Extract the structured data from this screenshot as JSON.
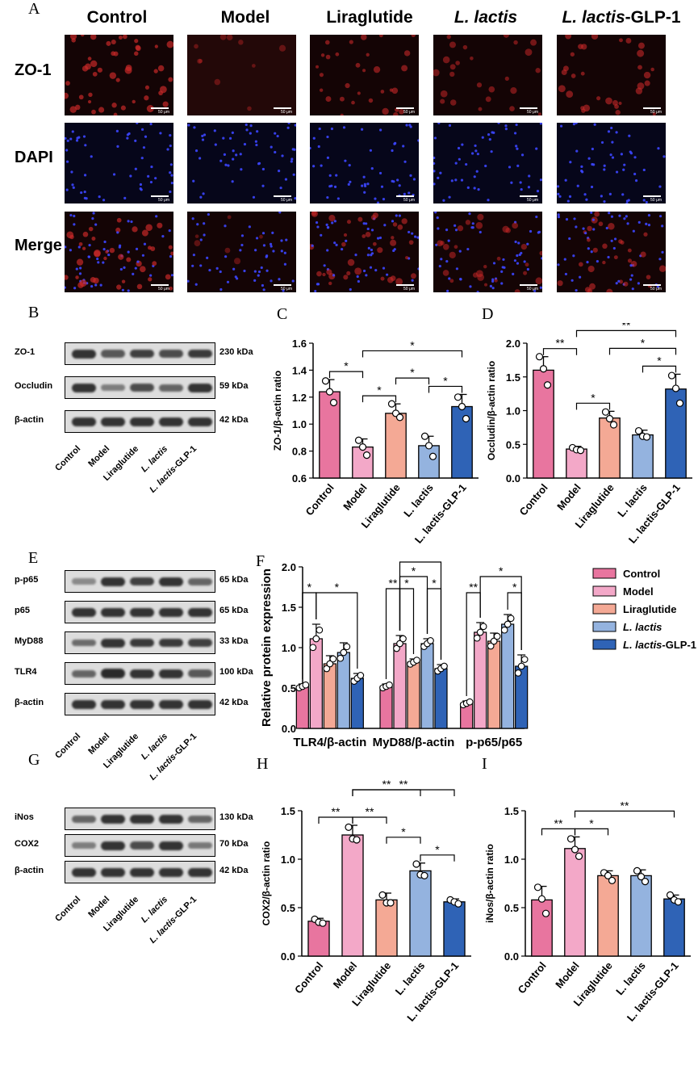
{
  "panels": {
    "A": "A",
    "B": "B",
    "C": "C",
    "D": "D",
    "E": "E",
    "F": "F",
    "G": "G",
    "H": "H",
    "I": "I"
  },
  "microscopy": {
    "columns": [
      "Control",
      "Model",
      "Liraglutide",
      "L. lactis",
      "L. lactis-GLP-1"
    ],
    "rows": [
      "ZO-1",
      "DAPI",
      "Merge"
    ],
    "scalebar": "50 μm"
  },
  "blots": {
    "B": {
      "bands": [
        {
          "name": "ZO-1",
          "kda": "230 kDa"
        },
        {
          "name": "Occludin",
          "kda": "59 kDa"
        },
        {
          "name": "β-actin",
          "kda": "42 kDa"
        }
      ]
    },
    "E": {
      "bands": [
        {
          "name": "p-p65",
          "kda": "65 kDa"
        },
        {
          "name": "p65",
          "kda": "65 kDa"
        },
        {
          "name": "MyD88",
          "kda": "33 kDa"
        },
        {
          "name": "TLR4",
          "kda": "100 kDa"
        },
        {
          "name": "β-actin",
          "kda": "42 kDa"
        }
      ]
    },
    "G": {
      "bands": [
        {
          "name": "iNos",
          "kda": "130 kDa"
        },
        {
          "name": "COX2",
          "kda": "70 kDa"
        },
        {
          "name": "β-actin",
          "kda": "42 kDa"
        }
      ]
    },
    "lanes": [
      "Control",
      "Model",
      "Liraglutide",
      "L. lactis",
      "L. lactis-GLP-1"
    ]
  },
  "colors": {
    "Control": "#e8759f",
    "Model": "#f3a8c8",
    "Liraglutide": "#f4a995",
    "L. lactis": "#94b3df",
    "L. lactis-GLP-1": "#2f63b6"
  },
  "chart_data": [
    {
      "panel": "C",
      "type": "bar",
      "ylabel": "ZO-1/β-actin ratio",
      "ylim": [
        0.6,
        1.6
      ],
      "yticks": [
        "0.6",
        "0.8",
        "1.0",
        "1.2",
        "1.4",
        "1.6"
      ],
      "categories": [
        "Control",
        "Model",
        "Liraglutide",
        "L. lactis",
        "L. lactis-GLP-1"
      ],
      "values": [
        1.24,
        0.83,
        1.08,
        0.84,
        1.13
      ],
      "errors": [
        0.09,
        0.06,
        0.07,
        0.07,
        0.09
      ],
      "points": [
        [
          1.32,
          1.24,
          1.16
        ],
        [
          0.88,
          0.83,
          0.77
        ],
        [
          1.15,
          1.08,
          1.05
        ],
        [
          0.91,
          0.84,
          0.76
        ],
        [
          1.2,
          1.13,
          1.04
        ]
      ],
      "sig": [
        {
          "a": 0,
          "b": 1,
          "l": "*",
          "lvl": 1
        },
        {
          "a": 1,
          "b": 2,
          "l": "*",
          "lvl": 1
        },
        {
          "a": 3,
          "b": 4,
          "l": "*",
          "lvl": 1
        },
        {
          "a": 2,
          "b": 3,
          "l": "*",
          "lvl": 2
        },
        {
          "a": 1,
          "b": 4,
          "l": "*",
          "lvl": 3
        }
      ]
    },
    {
      "panel": "D",
      "type": "bar",
      "ylabel": "Occludin/β-actin ratio",
      "ylim": [
        0,
        2.0
      ],
      "yticks": [
        "0.0",
        "0.5",
        "1.0",
        "1.5",
        "2.0"
      ],
      "categories": [
        "Control",
        "Model",
        "Liraglutide",
        "L. lactis",
        "L. lactis-GLP-1"
      ],
      "values": [
        1.6,
        0.43,
        0.89,
        0.64,
        1.32
      ],
      "errors": [
        0.2,
        0.04,
        0.1,
        0.07,
        0.22
      ],
      "points": [
        [
          1.8,
          1.62,
          1.38
        ],
        [
          0.45,
          0.42,
          0.41
        ],
        [
          0.98,
          0.88,
          0.79
        ],
        [
          0.7,
          0.62,
          0.61
        ],
        [
          1.52,
          1.33,
          1.11
        ]
      ],
      "sig": [
        {
          "a": 0,
          "b": 1,
          "l": "**",
          "lvl": 1
        },
        {
          "a": 1,
          "b": 2,
          "l": "*",
          "lvl": 1
        },
        {
          "a": 3,
          "b": 4,
          "l": "*",
          "lvl": 1
        },
        {
          "a": 2,
          "b": 4,
          "l": "*",
          "lvl": 2
        },
        {
          "a": 1,
          "b": 4,
          "l": "**",
          "lvl": 3
        }
      ]
    },
    {
      "panel": "F",
      "type": "bar",
      "ylabel": "Relative protein expression",
      "ylim": [
        0,
        2.0
      ],
      "yticks": [
        "0.0",
        "0.5",
        "1.0",
        "1.5",
        "2.0"
      ],
      "groups": [
        "TLR4/β-actin",
        "MyD88/β-actin",
        "p-p65/p65"
      ],
      "series": [
        {
          "name": "Control",
          "values": [
            0.52,
            0.52,
            0.31
          ],
          "errors": [
            0.03,
            0.03,
            0.03
          ]
        },
        {
          "name": "Model",
          "values": [
            1.11,
            1.05,
            1.19
          ],
          "errors": [
            0.18,
            0.1,
            0.12
          ]
        },
        {
          "name": "Liraglutide",
          "values": [
            0.8,
            0.82,
            1.08
          ],
          "errors": [
            0.1,
            0.04,
            0.1
          ]
        },
        {
          "name": "L. lactis",
          "values": [
            0.94,
            1.05,
            1.29
          ],
          "errors": [
            0.12,
            0.06,
            0.12
          ]
        },
        {
          "name": "L. lactis-GLP-1",
          "values": [
            0.62,
            0.74,
            0.77
          ],
          "errors": [
            0.06,
            0.05,
            0.14
          ]
        }
      ],
      "sig": [
        {
          "g": 0,
          "a": 0,
          "b": 1,
          "l": "*",
          "lvl": 1
        },
        {
          "g": 0,
          "a": 1,
          "b": 4,
          "l": "*",
          "lvl": 1
        },
        {
          "g": 1,
          "a": 0,
          "b": 1,
          "l": "**",
          "lvl": 1
        },
        {
          "g": 1,
          "a": 1,
          "b": 2,
          "l": "*",
          "lvl": 1
        },
        {
          "g": 1,
          "a": 3,
          "b": 4,
          "l": "*",
          "lvl": 1
        },
        {
          "g": 1,
          "a": 1,
          "b": 3,
          "l": "*",
          "lvl": 2
        },
        {
          "g": 1,
          "a": 1,
          "b": 4,
          "l": "^",
          "lvl": 3
        },
        {
          "g": 2,
          "a": 0,
          "b": 1,
          "l": "**",
          "lvl": 1
        },
        {
          "g": 2,
          "a": 3,
          "b": 4,
          "l": "*",
          "lvl": 1
        },
        {
          "g": 2,
          "a": 1,
          "b": 4,
          "l": "*",
          "lvl": 2
        }
      ],
      "legend": [
        "Control",
        "Model",
        "Liraglutide",
        "L. lactis",
        "L. lactis-GLP-1"
      ]
    },
    {
      "panel": "H",
      "type": "bar",
      "ylabel": "COX2/β-actin ratio",
      "ylim": [
        0,
        1.5
      ],
      "yticks": [
        "0.0",
        "0.5",
        "1.0",
        "1.5"
      ],
      "categories": [
        "Control",
        "Model",
        "Liraglutide",
        "L. lactis",
        "L. lactis-GLP-1"
      ],
      "values": [
        0.36,
        1.25,
        0.58,
        0.88,
        0.56
      ],
      "errors": [
        0.03,
        0.1,
        0.07,
        0.08,
        0.03
      ],
      "points": [
        [
          0.38,
          0.35,
          0.34
        ],
        [
          1.33,
          1.21,
          1.2
        ],
        [
          0.63,
          0.55,
          0.55
        ],
        [
          0.95,
          0.84,
          0.83
        ],
        [
          0.58,
          0.56,
          0.54
        ]
      ],
      "sig": [
        {
          "a": 0,
          "b": 1,
          "l": "**",
          "lvl": 1
        },
        {
          "a": 1,
          "b": 2,
          "l": "**",
          "lvl": 1
        },
        {
          "a": 3,
          "b": 4,
          "l": "*",
          "lvl": 1
        },
        {
          "a": 2,
          "b": 3,
          "l": "*",
          "lvl": 2
        },
        {
          "a": 1,
          "b": 3,
          "l": "**",
          "lvl": 3
        },
        {
          "a": 1,
          "b": 4,
          "l": "**",
          "lvl": 4
        }
      ]
    },
    {
      "panel": "I",
      "type": "bar",
      "ylabel": "iNos/β-actin ratio",
      "ylim": [
        0,
        1.5
      ],
      "yticks": [
        "0.0",
        "0.5",
        "1.0",
        "1.5"
      ],
      "categories": [
        "Control",
        "Model",
        "Liraglutide",
        "L. lactis",
        "L. lactis-GLP-1"
      ],
      "values": [
        0.58,
        1.11,
        0.83,
        0.83,
        0.59
      ],
      "errors": [
        0.14,
        0.12,
        0.05,
        0.06,
        0.04
      ],
      "points": [
        [
          0.71,
          0.59,
          0.44
        ],
        [
          1.21,
          1.1,
          1.03
        ],
        [
          0.86,
          0.83,
          0.78
        ],
        [
          0.88,
          0.82,
          0.77
        ],
        [
          0.63,
          0.58,
          0.56
        ]
      ],
      "sig": [
        {
          "a": 0,
          "b": 1,
          "l": "**",
          "lvl": 1
        },
        {
          "a": 1,
          "b": 2,
          "l": "*",
          "lvl": 1
        },
        {
          "a": 1,
          "b": 4,
          "l": "**",
          "lvl": 2
        }
      ]
    }
  ]
}
